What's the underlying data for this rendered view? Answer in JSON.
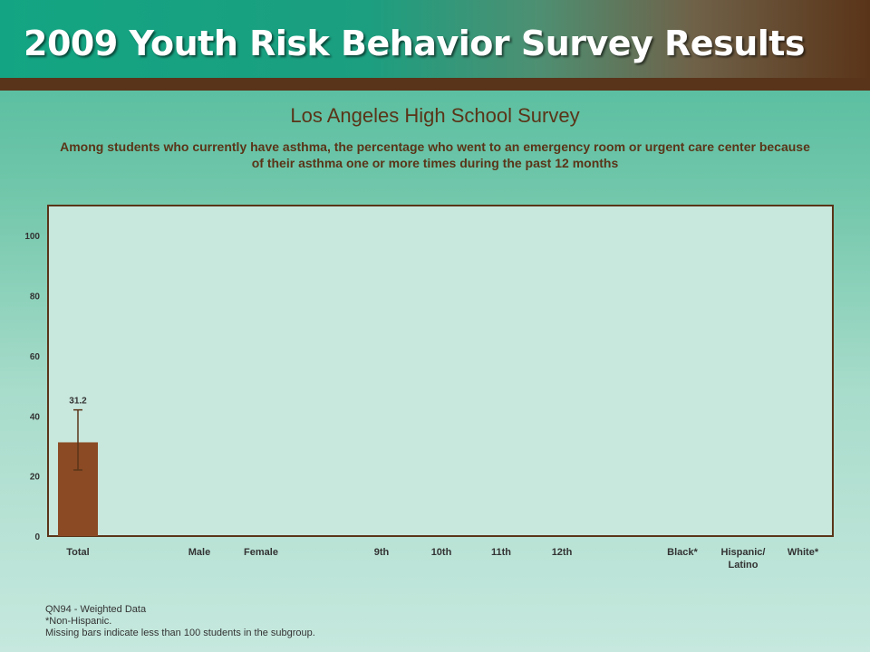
{
  "banner": {
    "title": "2009 Youth Risk Behavior Survey Results"
  },
  "chart_data": {
    "type": "bar",
    "title": "Los Angeles High School Survey",
    "subtitle": "Among students who currently have asthma, the percentage who went to an emergency room or urgent care center because of their asthma one or more times during the past 12 months",
    "categories": [
      "Total",
      "Male",
      "Female",
      "9th",
      "10th",
      "11th",
      "12th",
      "Black*",
      "Hispanic/ Latino",
      "White*"
    ],
    "values": [
      31.2,
      null,
      null,
      null,
      null,
      null,
      null,
      null,
      null,
      null
    ],
    "error_bars": [
      [
        22.0,
        42.0
      ],
      null,
      null,
      null,
      null,
      null,
      null,
      null,
      null,
      null
    ],
    "data_labels": [
      "31.2",
      "",
      "",
      "",
      "",
      "",
      "",
      "",
      "",
      ""
    ],
    "yticks": [
      0,
      20,
      40,
      60,
      80,
      100
    ],
    "ylim": [
      0,
      110
    ],
    "grid": false,
    "colors": {
      "bar": "#8b4a24",
      "frame": "#5a3418",
      "plot_bg": "#c8e7dd"
    }
  },
  "footnotes": {
    "line1": "QN94 - Weighted Data",
    "line2": "*Non-Hispanic.",
    "line3": "Missing bars indicate less than 100 students in the subgroup."
  }
}
